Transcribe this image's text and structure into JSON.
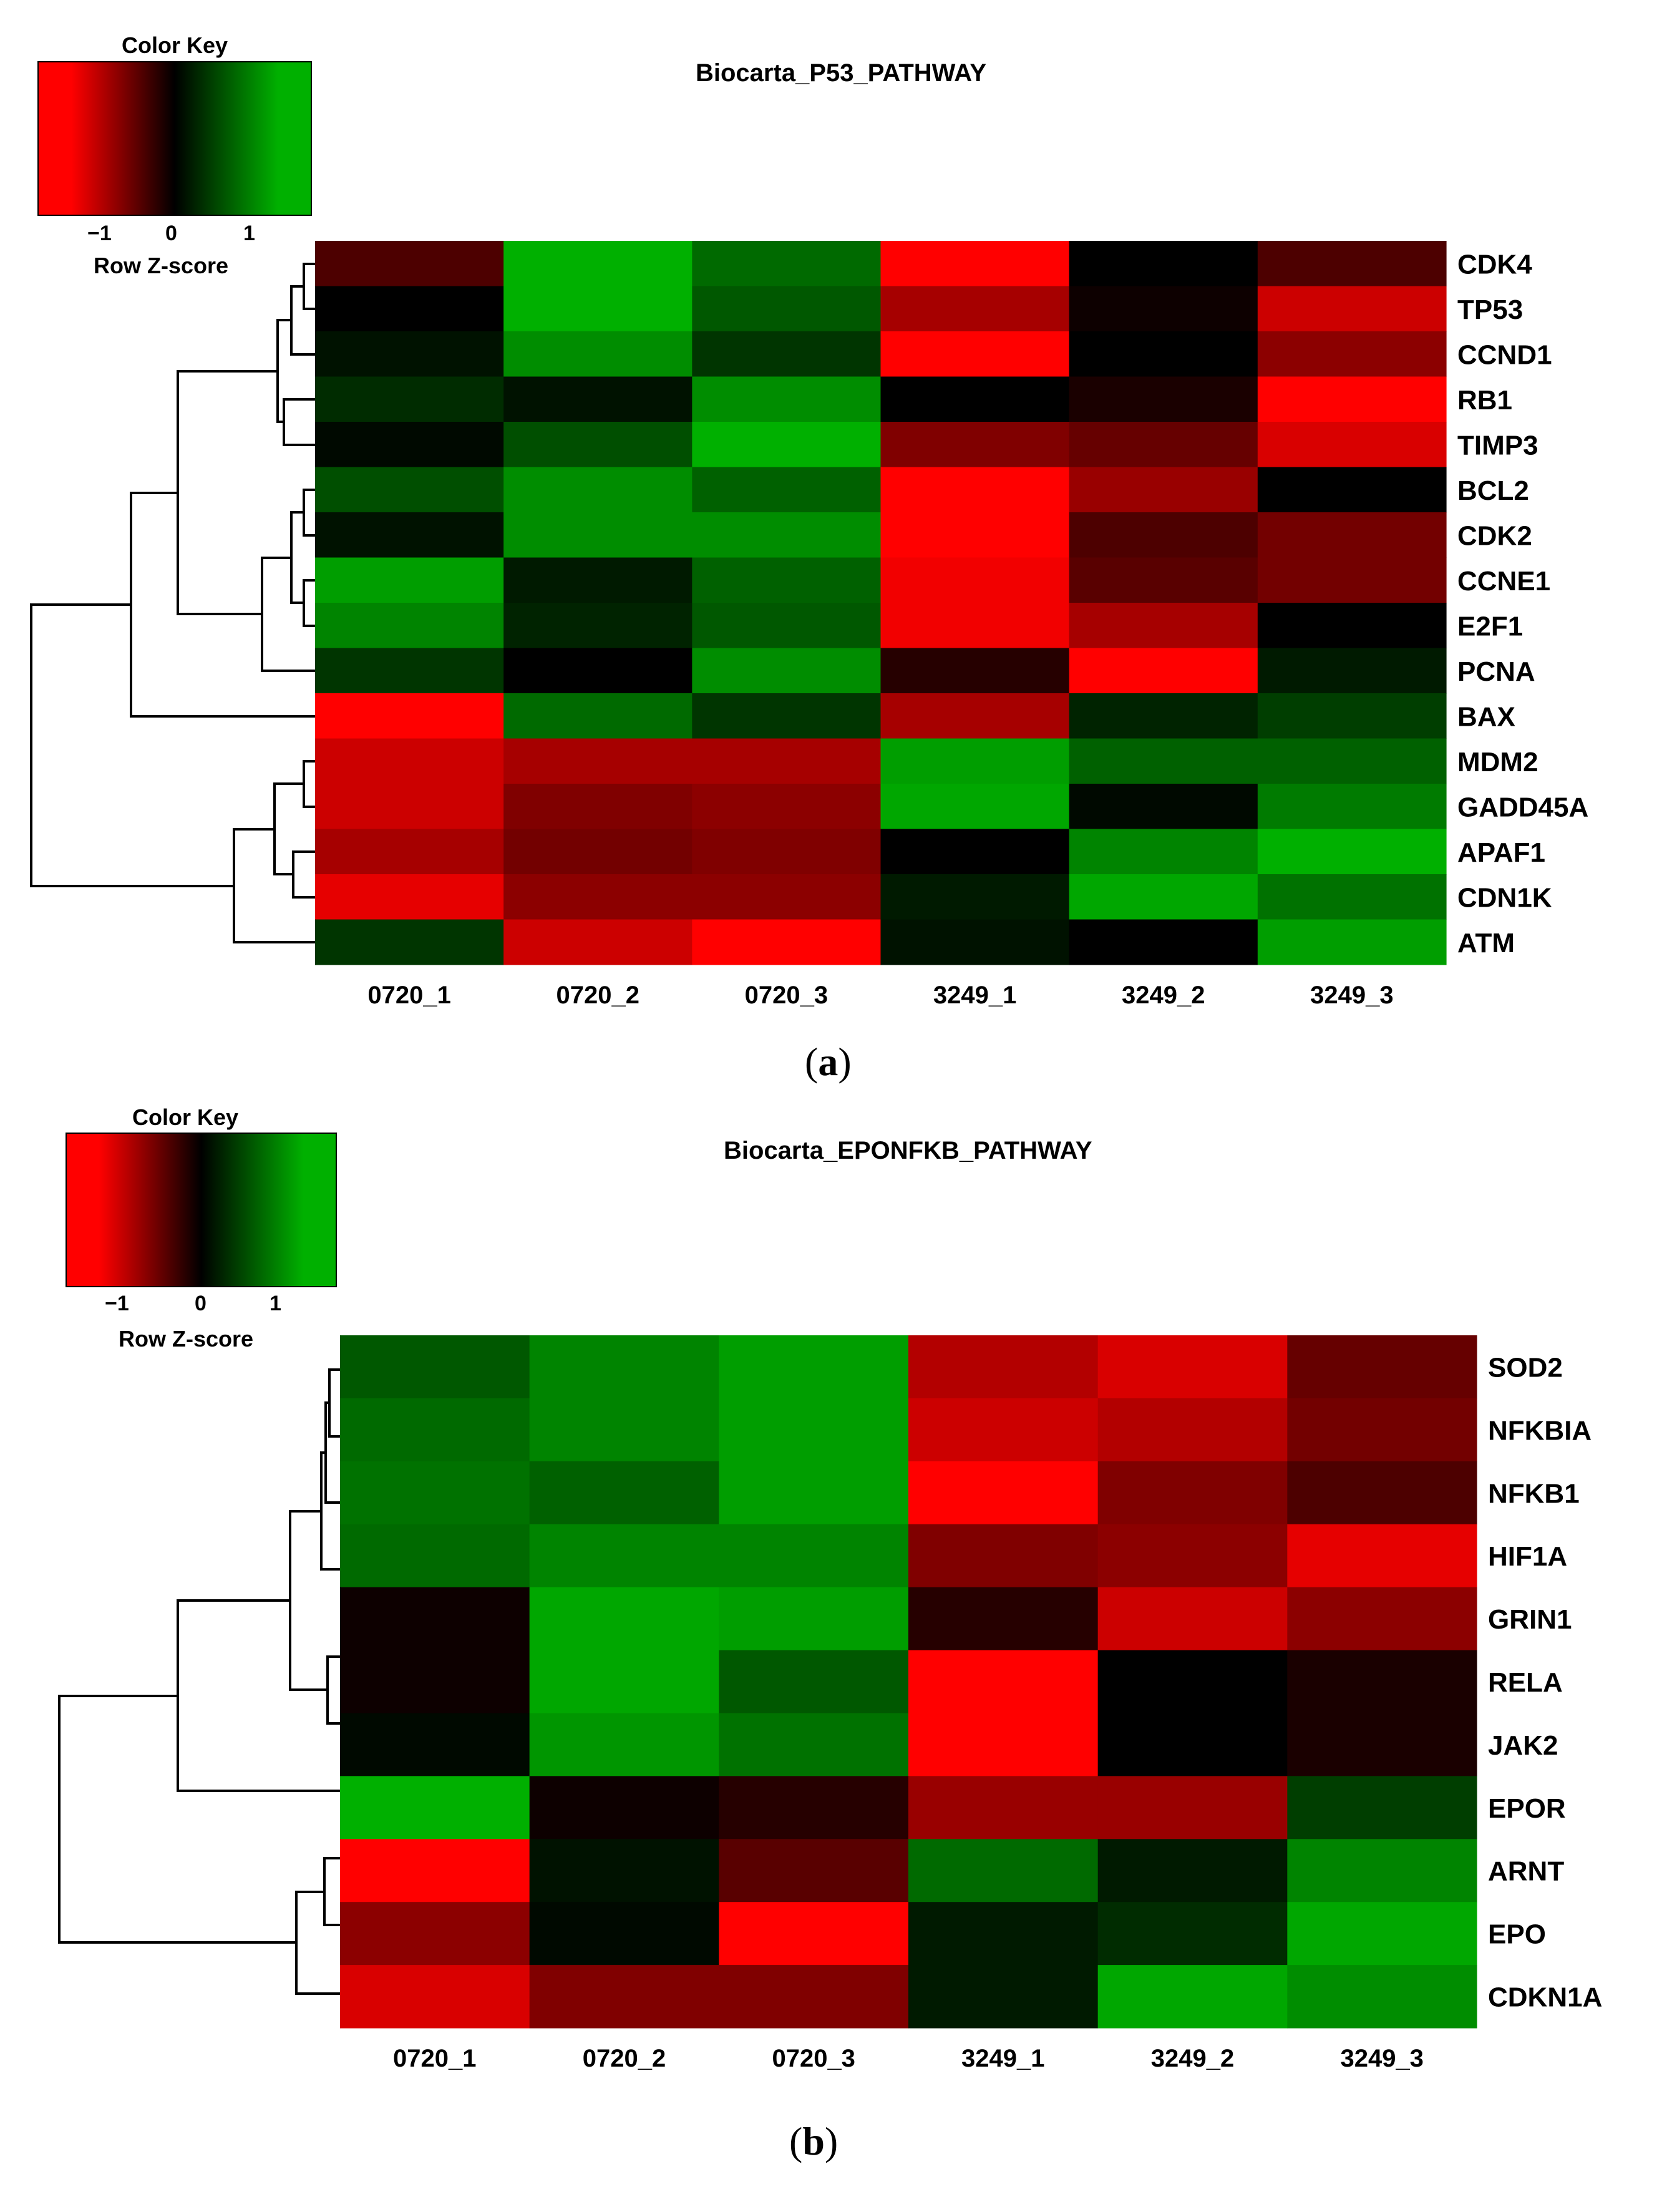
{
  "chart_data": [
    {
      "type": "heatmap",
      "panel_label": "a",
      "title": "Biocarta_P53_PATHWAY",
      "color_key": {
        "title": "Color Key",
        "label": "Row Z-score",
        "ticks": [
          "−1",
          "0",
          "1"
        ],
        "low_color": "#ff0000",
        "mid_color": "#000000",
        "high_color": "#00b000"
      },
      "columns": [
        "0720_1",
        "0720_2",
        "0720_3",
        "3249_1",
        "3249_2",
        "3249_3"
      ],
      "rows": [
        "CDK4",
        "TP53",
        "CCND1",
        "RB1",
        "TIMP3",
        "BCL2",
        "CDK2",
        "CCNE1",
        "E2F1",
        "PCNA",
        "BAX",
        "MDM2",
        "GADD45A",
        "APAF1",
        "CDN1K",
        "ATM"
      ],
      "values": [
        [
          -0.3,
          1.0,
          0.6,
          -1.0,
          0.0,
          -0.3
        ],
        [
          0.0,
          1.0,
          0.5,
          -0.65,
          -0.05,
          -0.8
        ],
        [
          0.1,
          0.8,
          0.3,
          -1.0,
          0.0,
          -0.55
        ],
        [
          0.25,
          0.1,
          0.8,
          0.0,
          -0.1,
          -1.0
        ],
        [
          0.05,
          0.45,
          1.0,
          -0.5,
          -0.4,
          -0.85
        ],
        [
          0.45,
          0.8,
          0.55,
          -1.0,
          -0.6,
          0.0
        ],
        [
          0.1,
          0.8,
          0.8,
          -1.0,
          -0.3,
          -0.45
        ],
        [
          0.9,
          0.15,
          0.55,
          -0.95,
          -0.35,
          -0.45
        ],
        [
          0.75,
          0.2,
          0.5,
          -0.95,
          -0.65,
          0.0
        ],
        [
          0.3,
          0.0,
          0.8,
          -0.15,
          -1.0,
          0.15
        ],
        [
          -1.0,
          0.6,
          0.3,
          -0.65,
          0.2,
          0.35
        ],
        [
          -0.8,
          -0.65,
          -0.65,
          0.9,
          0.55,
          0.55
        ],
        [
          -0.8,
          -0.5,
          -0.55,
          0.95,
          0.05,
          0.7
        ],
        [
          -0.65,
          -0.45,
          -0.5,
          0.0,
          0.75,
          1.0
        ],
        [
          -0.9,
          -0.55,
          -0.55,
          0.15,
          0.95,
          0.65
        ],
        [
          0.3,
          -0.8,
          -1.0,
          0.1,
          0.0,
          0.9
        ]
      ]
    },
    {
      "type": "heatmap",
      "panel_label": "b",
      "title": "Biocarta_EPONFKB_PATHWAY",
      "color_key": {
        "title": "Color Key",
        "label": "Row Z-score",
        "ticks": [
          "−1",
          "0",
          "1"
        ],
        "low_color": "#ff0000",
        "mid_color": "#000000",
        "high_color": "#00b000"
      },
      "columns": [
        "0720_1",
        "0720_2",
        "0720_3",
        "3249_1",
        "3249_2",
        "3249_3"
      ],
      "rows": [
        "SOD2",
        "NFKBIA",
        "NFKB1",
        "HIF1A",
        "GRIN1",
        "RELA",
        "JAK2",
        "EPOR",
        "ARNT",
        "EPO",
        "CDKN1A"
      ],
      "values": [
        [
          0.5,
          0.75,
          0.9,
          -0.7,
          -0.85,
          -0.4
        ],
        [
          0.6,
          0.75,
          0.9,
          -0.8,
          -0.7,
          -0.45
        ],
        [
          0.65,
          0.55,
          0.9,
          -1.0,
          -0.5,
          -0.3
        ],
        [
          0.6,
          0.75,
          0.75,
          -0.5,
          -0.55,
          -0.9
        ],
        [
          -0.05,
          0.95,
          0.9,
          -0.15,
          -0.8,
          -0.55
        ],
        [
          -0.05,
          0.95,
          0.5,
          -1.0,
          0.0,
          -0.1
        ],
        [
          0.05,
          0.85,
          0.65,
          -1.0,
          0.0,
          -0.1
        ],
        [
          1.0,
          -0.05,
          -0.15,
          -0.6,
          -0.6,
          0.35
        ],
        [
          -1.0,
          0.1,
          -0.35,
          0.6,
          0.15,
          0.75
        ],
        [
          -0.55,
          0.05,
          -1.0,
          0.15,
          0.25,
          0.95
        ],
        [
          -0.85,
          -0.5,
          -0.5,
          0.15,
          0.95,
          0.8
        ]
      ]
    }
  ]
}
